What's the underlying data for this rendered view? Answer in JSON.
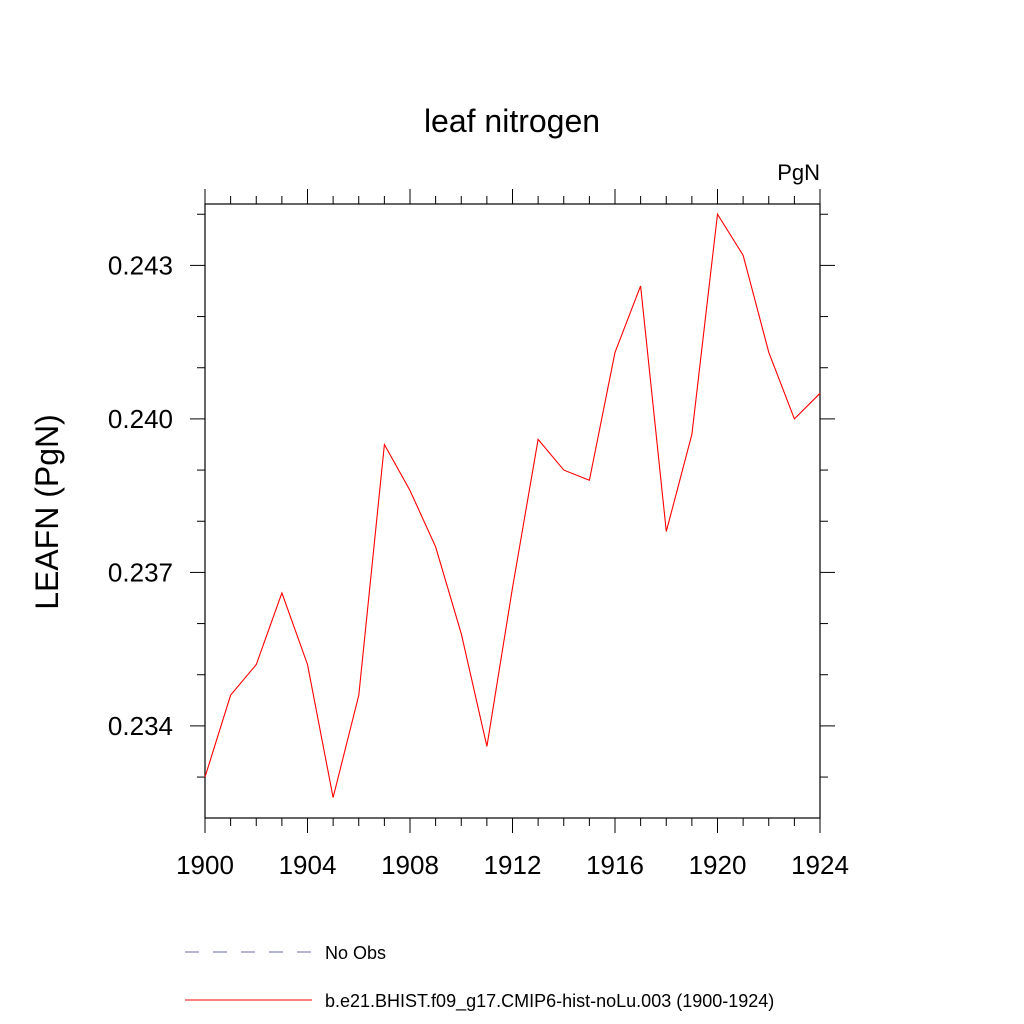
{
  "chart_data": {
    "type": "line",
    "title": "leaf nitrogen",
    "units_label": "PgN",
    "xlabel": "",
    "ylabel": "LEAFN  (PgN)",
    "xlim": [
      1900,
      1924
    ],
    "ylim": [
      0.2322,
      0.2442
    ],
    "x_ticks": [
      1900,
      1904,
      1908,
      1912,
      1916,
      1920,
      1924
    ],
    "x_tick_labels": [
      "1900",
      "1904",
      "1908",
      "1912",
      "1916",
      "1920",
      "1924"
    ],
    "y_ticks": [
      0.234,
      0.237,
      0.24,
      0.243
    ],
    "y_tick_labels": [
      "0.234",
      "0.237",
      "0.240",
      "0.243"
    ],
    "grid": false,
    "legend_position": "bottom",
    "series": [
      {
        "name": "b.e21.BHIST.f09_g17.CMIP6-hist-noLu.003 (1900-1924)",
        "color": "#ff0000",
        "style": "solid",
        "x": [
          1900,
          1901,
          1902,
          1903,
          1904,
          1905,
          1906,
          1907,
          1908,
          1909,
          1910,
          1911,
          1912,
          1913,
          1914,
          1915,
          1916,
          1917,
          1918,
          1919,
          1920,
          1921,
          1922,
          1923,
          1924
        ],
        "y": [
          0.233,
          0.2346,
          0.2352,
          0.2366,
          0.2352,
          0.2326,
          0.2346,
          0.2395,
          0.2386,
          0.2375,
          0.2358,
          0.2336,
          0.2367,
          0.2396,
          0.239,
          0.2388,
          0.2413,
          0.2426,
          0.2378,
          0.2397,
          0.244,
          0.2432,
          0.2413,
          0.24,
          0.2405
        ]
      }
    ],
    "legend": [
      {
        "label": "No Obs",
        "color": "#6a6ab0",
        "style": "dashed"
      },
      {
        "label": "b.e21.BHIST.f09_g17.CMIP6-hist-noLu.003 (1900-1924)",
        "color": "#ff0000",
        "style": "solid"
      }
    ]
  }
}
